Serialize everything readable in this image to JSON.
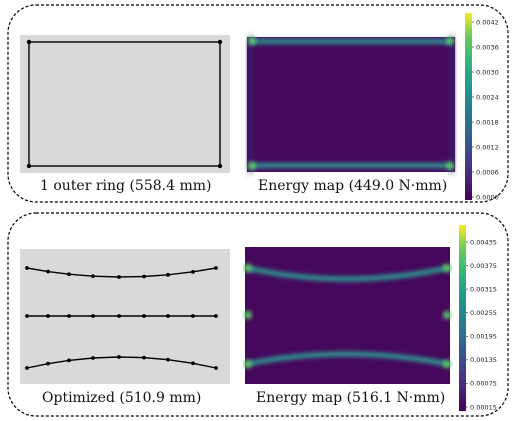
{
  "panels": [
    {
      "shape_caption": "1 outer ring (558.4 mm)",
      "energy_caption": "Energy map (449.0 N·mm)",
      "colorbar": {
        "ticks": [
          "0.0042",
          "0.0036",
          "0.0030",
          "0.0024",
          "0.0018",
          "0.0012",
          "0.0006",
          "0.0000"
        ],
        "range": [
          0.0,
          0.0045
        ]
      }
    },
    {
      "shape_caption": "Optimized (510.9 mm)",
      "energy_caption": "Energy map (516.1 N·mm)",
      "colorbar": {
        "ticks": [
          "0.00435",
          "0.00375",
          "0.00315",
          "0.00255",
          "0.00195",
          "0.00135",
          "0.00075",
          "0.00015"
        ],
        "range": [
          0.00015,
          0.0047
        ]
      }
    }
  ],
  "colors": {
    "background": "#ffffff",
    "canvas": "#d9d9d9",
    "stroke": "#000000",
    "energy_low": "#440154",
    "energy_field": "#46085c",
    "energy_high": "#35b779",
    "colormap": "viridis"
  }
}
